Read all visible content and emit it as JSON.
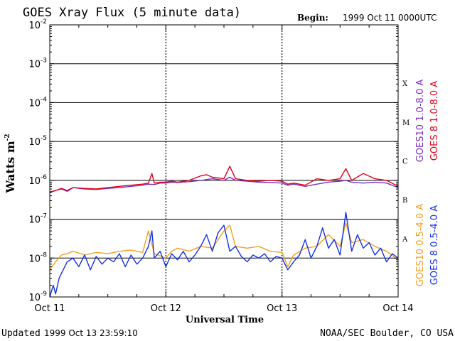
{
  "chart_data": {
    "type": "line",
    "title": "GOES Xray Flux (5 minute data)",
    "begin_label": "Begin:",
    "begin_value": "1999 Oct 11 0000UTC",
    "xlabel": "Universal Time",
    "ylabel": "Watts m",
    "ylabel_exp": "-2",
    "yscale": "log",
    "ylim": [
      1e-09,
      0.01
    ],
    "y_ticks": [
      {
        "base": "10",
        "exp": "-2"
      },
      {
        "base": "10",
        "exp": "-3"
      },
      {
        "base": "10",
        "exp": "-4"
      },
      {
        "base": "10",
        "exp": "-5"
      },
      {
        "base": "10",
        "exp": "-6"
      },
      {
        "base": "10",
        "exp": "-7"
      },
      {
        "base": "10",
        "exp": "-8"
      },
      {
        "base": "10",
        "exp": "-9"
      }
    ],
    "x_ticks": [
      "Oct 11",
      "Oct 12",
      "Oct 13",
      "Oct 14"
    ],
    "flare_classes": [
      "X",
      "M",
      "C",
      "B",
      "A"
    ],
    "grid": true,
    "series": [
      {
        "name": "GOES10 1.0-8.0 A",
        "color": "#7a2fbf",
        "x": [
          0.0,
          0.05,
          0.1,
          0.15,
          0.2,
          0.3,
          0.4,
          0.5,
          0.6,
          0.7,
          0.8,
          0.85,
          0.9,
          0.95,
          1.0,
          1.05,
          1.1,
          1.2,
          1.3,
          1.4,
          1.5,
          1.55,
          1.6,
          1.7,
          1.8,
          1.9,
          2.0,
          2.05,
          2.1,
          2.2,
          2.3,
          2.4,
          2.5,
          2.55,
          2.6,
          2.7,
          2.8,
          2.9,
          3.0
        ],
        "values": [
          4.8e-07,
          5.5e-07,
          6e-07,
          5.2e-07,
          6.5e-07,
          6e-07,
          5.8e-07,
          6.2e-07,
          6.5e-07,
          7e-07,
          7.5e-07,
          8e-07,
          7.8e-07,
          8.5e-07,
          8.5e-07,
          9e-07,
          8.8e-07,
          9.2e-07,
          1e-06,
          1.1e-06,
          1e-06,
          1.2e-06,
          1e-06,
          9.5e-07,
          9e-07,
          8.8e-07,
          8.5e-07,
          7.5e-07,
          8e-07,
          7e-07,
          8e-07,
          9e-07,
          9.5e-07,
          1e-06,
          9e-07,
          8.5e-07,
          9e-07,
          8.5e-07,
          6.5e-07
        ]
      },
      {
        "name": "GOES 8 1.0-8.0 A",
        "color": "#e0001b",
        "x": [
          0.0,
          0.05,
          0.1,
          0.15,
          0.2,
          0.3,
          0.4,
          0.5,
          0.6,
          0.7,
          0.8,
          0.85,
          0.88,
          0.9,
          0.95,
          1.0,
          1.05,
          1.1,
          1.2,
          1.3,
          1.35,
          1.4,
          1.5,
          1.55,
          1.6,
          1.7,
          1.8,
          1.9,
          2.0,
          2.05,
          2.1,
          2.2,
          2.3,
          2.4,
          2.5,
          2.55,
          2.6,
          2.7,
          2.8,
          2.9,
          3.0
        ],
        "values": [
          5e-07,
          5.5e-07,
          6.2e-07,
          5.5e-07,
          6.5e-07,
          6.2e-07,
          6e-07,
          6.5e-07,
          7e-07,
          7.5e-07,
          8e-07,
          8.5e-07,
          1.5e-06,
          8.5e-07,
          9e-07,
          9e-07,
          9.5e-07,
          9e-07,
          1e-06,
          1.3e-06,
          1.4e-06,
          1.2e-06,
          1.1e-06,
          2.3e-06,
          1.1e-06,
          1e-06,
          9.5e-07,
          1e-06,
          9.5e-07,
          8e-07,
          8.5e-07,
          7.5e-07,
          1.1e-06,
          1e-06,
          1.1e-06,
          2e-06,
          1e-06,
          1.5e-06,
          1.1e-06,
          1e-06,
          7e-07
        ]
      },
      {
        "name": "GOES10 0.5-4.0 A",
        "color": "#f0a020",
        "x": [
          0.0,
          0.05,
          0.1,
          0.15,
          0.2,
          0.3,
          0.4,
          0.5,
          0.6,
          0.7,
          0.8,
          0.85,
          0.9,
          1.0,
          1.05,
          1.1,
          1.2,
          1.3,
          1.4,
          1.45,
          1.5,
          1.55,
          1.6,
          1.7,
          1.8,
          1.9,
          2.0,
          2.05,
          2.1,
          2.2,
          2.3,
          2.4,
          2.5,
          2.55,
          2.6,
          2.7,
          2.8,
          2.9,
          3.0
        ],
        "values": [
          5e-09,
          8e-09,
          1.2e-08,
          1.3e-08,
          1.5e-08,
          1.2e-08,
          1.4e-08,
          1.3e-08,
          1.5e-08,
          1.6e-08,
          1.4e-08,
          5e-08,
          1.3e-08,
          1e-08,
          1.5e-08,
          1.8e-08,
          1.5e-08,
          2e-08,
          1.8e-08,
          3e-08,
          5e-08,
          7e-08,
          2e-08,
          1.8e-08,
          2e-08,
          1.5e-08,
          1.4e-08,
          6e-09,
          1.2e-08,
          1.8e-08,
          2e-08,
          4e-08,
          2e-08,
          8e-08,
          2.5e-08,
          3e-08,
          2e-08,
          1.5e-08,
          9e-09
        ]
      },
      {
        "name": "GOES 8 0.5-4.0 A",
        "color": "#1530e8",
        "x": [
          0.0,
          0.03,
          0.05,
          0.08,
          0.1,
          0.15,
          0.2,
          0.25,
          0.3,
          0.35,
          0.4,
          0.45,
          0.5,
          0.55,
          0.6,
          0.65,
          0.7,
          0.75,
          0.8,
          0.85,
          0.88,
          0.9,
          0.95,
          1.0,
          1.05,
          1.1,
          1.15,
          1.2,
          1.25,
          1.3,
          1.35,
          1.4,
          1.45,
          1.5,
          1.55,
          1.6,
          1.65,
          1.7,
          1.75,
          1.8,
          1.85,
          1.9,
          1.95,
          2.0,
          2.05,
          2.1,
          2.15,
          2.2,
          2.25,
          2.3,
          2.35,
          2.4,
          2.45,
          2.5,
          2.55,
          2.6,
          2.65,
          2.7,
          2.75,
          2.8,
          2.85,
          2.9,
          2.95,
          3.0
        ],
        "values": [
          1e-09,
          2e-09,
          1.2e-09,
          3e-09,
          4e-09,
          8e-09,
          1e-08,
          6e-09,
          1.2e-08,
          5e-09,
          1.1e-08,
          7e-09,
          1e-08,
          8e-09,
          1.3e-08,
          6e-09,
          1.2e-08,
          7e-09,
          1e-08,
          2e-08,
          5e-08,
          1e-08,
          1.5e-08,
          6e-09,
          1.3e-08,
          9e-09,
          1.5e-08,
          8e-09,
          1.2e-08,
          2e-08,
          4e-08,
          1.5e-08,
          4.5e-08,
          7e-08,
          1.5e-08,
          2e-08,
          1.1e-08,
          8e-09,
          1.2e-08,
          1e-08,
          1.3e-08,
          8e-09,
          1.1e-08,
          1e-08,
          5e-09,
          8e-09,
          1.2e-08,
          3e-08,
          1e-08,
          2e-08,
          6e-08,
          1.8e-08,
          3e-08,
          1.2e-08,
          1.5e-07,
          1.5e-08,
          4e-08,
          1.8e-08,
          2.5e-08,
          1.2e-08,
          1.8e-08,
          8e-09,
          1.3e-08,
          1e-08
        ]
      }
    ],
    "legend": [
      "GOES10 1.0-8.0 A",
      "GOES 8 1.0-8.0 A",
      "GOES10 0.5-4.0 A",
      "GOES 8 0.5-4.0 A"
    ],
    "footer_updated_label": "Updated",
    "footer_updated_value": "1999 Oct 13 23:59:10",
    "footer_source": "NOAA/SEC Boulder, CO USA"
  }
}
